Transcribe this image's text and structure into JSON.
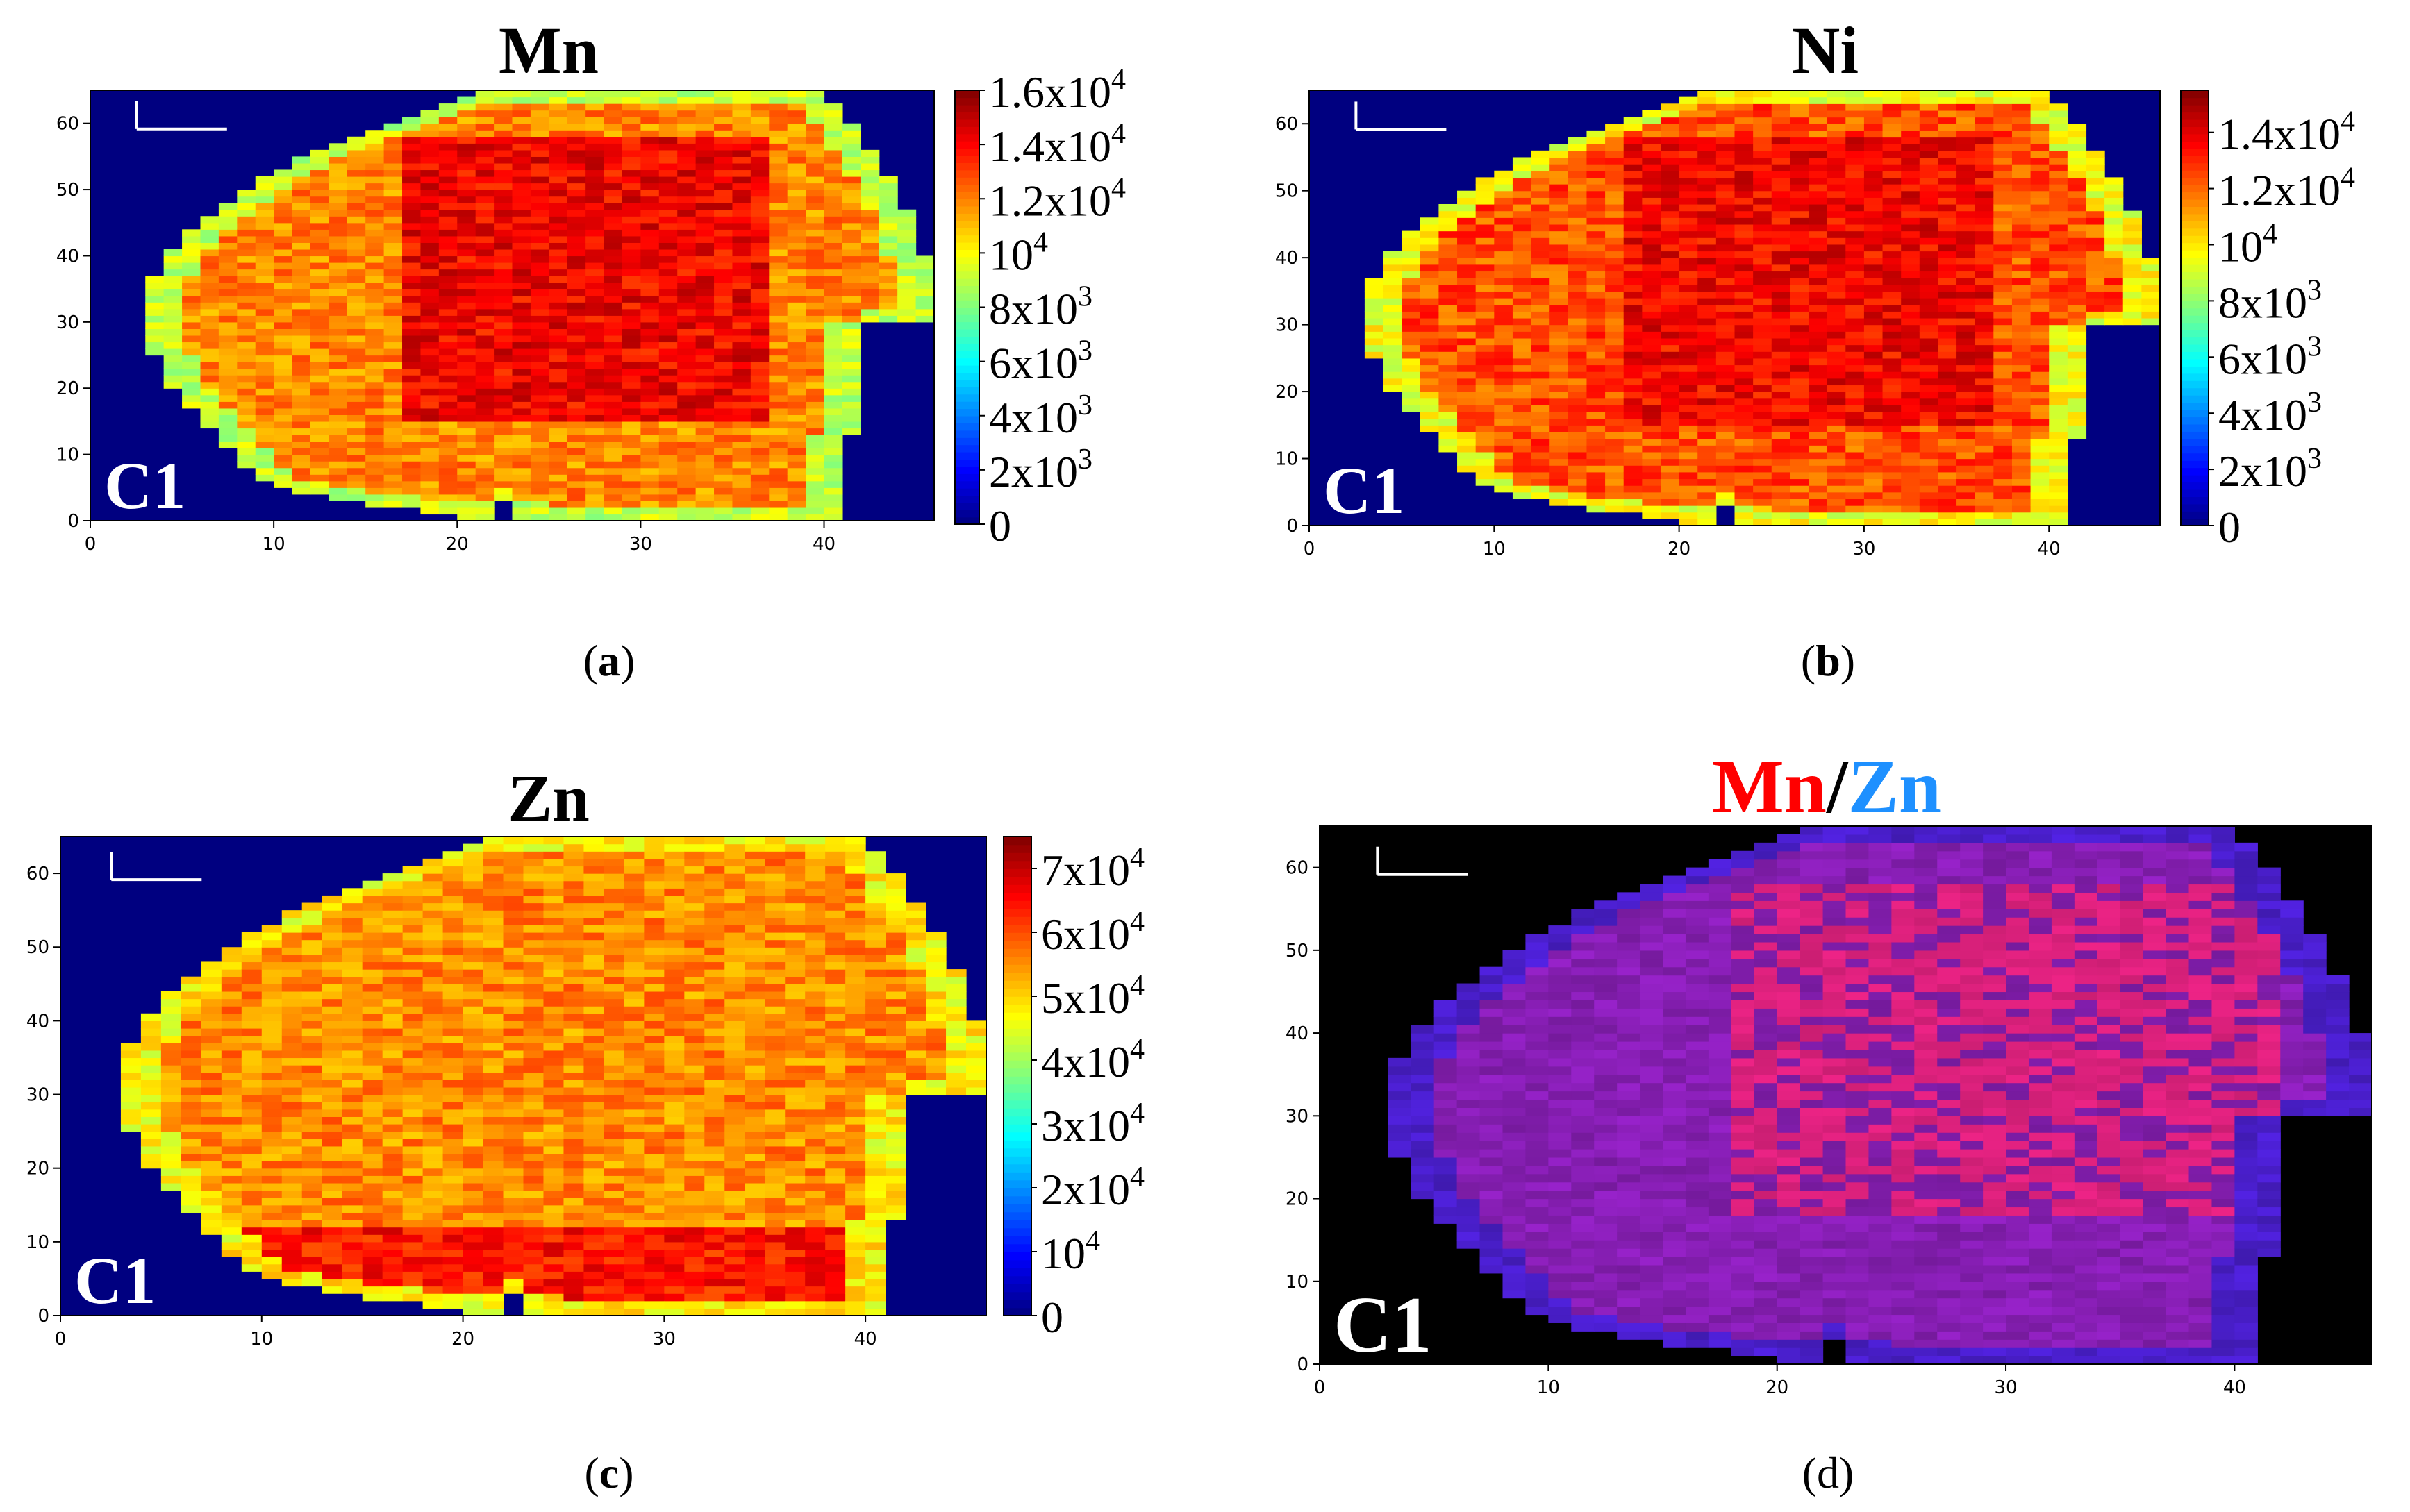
{
  "figure": {
    "captions": [
      "a",
      "b",
      "c",
      "d"
    ]
  },
  "chart_data": [
    {
      "type": "heatmap",
      "panel_label": "a",
      "title": "Mn",
      "sample_label": "C1",
      "xlabel": "",
      "ylabel": "",
      "xlim": [
        0,
        46
      ],
      "ylim": [
        0,
        65
      ],
      "x_ticks": [
        0,
        10,
        20,
        30,
        40
      ],
      "y_ticks": [
        0,
        10,
        20,
        30,
        40,
        50,
        60
      ],
      "colorbar": {
        "min": 0,
        "max": 16000,
        "ticks": [
          {
            "value": 0,
            "label": "0"
          },
          {
            "value": 2000,
            "label": "2x10",
            "exp": "3"
          },
          {
            "value": 4000,
            "label": "4x10",
            "exp": "3"
          },
          {
            "value": 6000,
            "label": "6x10",
            "exp": "3"
          },
          {
            "value": 8000,
            "label": "8x10",
            "exp": "3"
          },
          {
            "value": 10000,
            "label": "10",
            "exp": "4"
          },
          {
            "value": 12000,
            "label": "1.2x10",
            "exp": "4"
          },
          {
            "value": 14000,
            "label": "1.4x10",
            "exp": "4"
          },
          {
            "value": 16000,
            "label": "1.6x10",
            "exp": "4"
          }
        ]
      },
      "background_value": 0,
      "regions": [
        {
          "name": "rim",
          "value": 9500
        },
        {
          "name": "inner",
          "value": 12000
        },
        {
          "name": "core",
          "value": 14500
        }
      ],
      "colormap": "jet"
    },
    {
      "type": "heatmap",
      "panel_label": "b",
      "title": "Ni",
      "sample_label": "C1",
      "xlabel": "",
      "ylabel": "",
      "xlim": [
        0,
        46
      ],
      "ylim": [
        0,
        65
      ],
      "x_ticks": [
        0,
        10,
        20,
        30,
        40
      ],
      "y_ticks": [
        0,
        10,
        20,
        30,
        40,
        50,
        60
      ],
      "colorbar": {
        "min": 0,
        "max": 15500,
        "ticks": [
          {
            "value": 0,
            "label": "0"
          },
          {
            "value": 2000,
            "label": "2x10",
            "exp": "3"
          },
          {
            "value": 4000,
            "label": "4x10",
            "exp": "3"
          },
          {
            "value": 6000,
            "label": "6x10",
            "exp": "3"
          },
          {
            "value": 8000,
            "label": "8x10",
            "exp": "3"
          },
          {
            "value": 10000,
            "label": "10",
            "exp": "4"
          },
          {
            "value": 12000,
            "label": "1.2x10",
            "exp": "4"
          },
          {
            "value": 14000,
            "label": "1.4x10",
            "exp": "4"
          }
        ]
      },
      "background_value": 0,
      "regions": [
        {
          "name": "rim",
          "value": 10000
        },
        {
          "name": "inner",
          "value": 12500
        },
        {
          "name": "core",
          "value": 14000
        }
      ],
      "colormap": "jet"
    },
    {
      "type": "heatmap",
      "panel_label": "c",
      "title": "Zn",
      "sample_label": "C1",
      "xlabel": "",
      "ylabel": "",
      "xlim": [
        0,
        46
      ],
      "ylim": [
        0,
        65
      ],
      "x_ticks": [
        0,
        10,
        20,
        30,
        40
      ],
      "y_ticks": [
        0,
        10,
        20,
        30,
        40,
        50,
        60
      ],
      "colorbar": {
        "min": 0,
        "max": 75000,
        "ticks": [
          {
            "value": 0,
            "label": "0"
          },
          {
            "value": 10000,
            "label": "10",
            "exp": "4"
          },
          {
            "value": 20000,
            "label": "2x10",
            "exp": "4"
          },
          {
            "value": 30000,
            "label": "3x10",
            "exp": "4"
          },
          {
            "value": 40000,
            "label": "4x10",
            "exp": "4"
          },
          {
            "value": 50000,
            "label": "5x10",
            "exp": "4"
          },
          {
            "value": 60000,
            "label": "6x10",
            "exp": "4"
          },
          {
            "value": 70000,
            "label": "7x10",
            "exp": "4"
          }
        ]
      },
      "background_value": 0,
      "regions": [
        {
          "name": "rim",
          "value": 50000
        },
        {
          "name": "body",
          "value": 56000
        },
        {
          "name": "lower band",
          "value": 66000
        }
      ],
      "colormap": "jet"
    },
    {
      "type": "heatmap",
      "panel_label": "d",
      "title_parts": [
        {
          "text": "Mn",
          "color": "#ff0000"
        },
        {
          "text": "/",
          "color": "#000000"
        },
        {
          "text": "Zn",
          "color": "#1e90ff"
        }
      ],
      "sample_label": "C1",
      "xlabel": "",
      "ylabel": "",
      "xlim": [
        0,
        46
      ],
      "ylim": [
        0,
        65
      ],
      "x_ticks": [
        0,
        10,
        20,
        30,
        40
      ],
      "y_ticks": [
        0,
        10,
        20,
        30,
        40,
        50,
        60
      ],
      "background_color": "#000000",
      "regions": [
        {
          "name": "rim",
          "color": "#4b1fcf"
        },
        {
          "name": "body",
          "color": "#8a1fb8"
        },
        {
          "name": "core",
          "color": "#d8207a"
        }
      ],
      "colormap": "red-blue overlay"
    }
  ]
}
